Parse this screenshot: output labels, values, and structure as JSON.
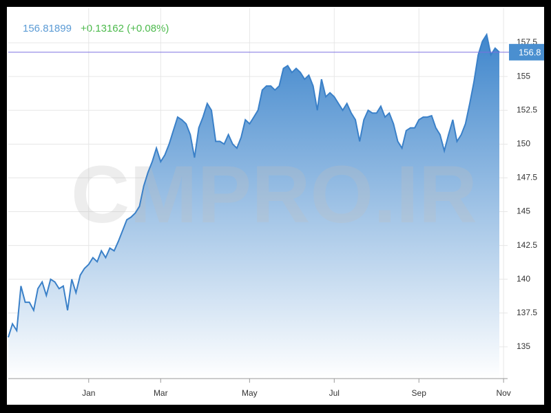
{
  "chart_data": {
    "type": "area",
    "last_value": "156.81899",
    "change": "+0.13162 (+0.08%)",
    "watermark": "CMPRO.IR",
    "price_line": 156.8,
    "color": "#3a80c8",
    "categories": [
      null,
      null,
      null,
      null,
      null,
      null,
      null,
      null,
      null,
      null,
      null,
      null,
      null,
      null,
      null,
      null,
      null,
      null,
      null,
      "Jan",
      null,
      null,
      null,
      null,
      null,
      null,
      null,
      null,
      null,
      null,
      null,
      null,
      null,
      null,
      null,
      null,
      "Mar",
      null,
      null,
      null,
      null,
      null,
      null,
      null,
      null,
      null,
      null,
      null,
      null,
      null,
      null,
      null,
      null,
      null,
      null,
      null,
      null,
      "May",
      null,
      null,
      null,
      null,
      null,
      null,
      null,
      null,
      null,
      null,
      null,
      null,
      null,
      null,
      null,
      null,
      null,
      null,
      null,
      "Jul",
      null,
      null,
      null,
      null,
      null,
      null,
      null,
      null,
      null,
      null,
      null,
      null,
      null,
      null,
      null,
      null,
      null,
      null,
      null,
      "Sep",
      null,
      null,
      null,
      null,
      null,
      null,
      null,
      null,
      null,
      null,
      null,
      null,
      null,
      null,
      null,
      null,
      null,
      null,
      null,
      "Nov"
    ],
    "values": [
      135.7,
      136.7,
      136.2,
      139.5,
      138.3,
      138.3,
      137.7,
      139.3,
      139.8,
      138.8,
      140.0,
      139.8,
      139.3,
      139.5,
      137.7,
      140.0,
      139.0,
      140.3,
      140.8,
      141.1,
      141.6,
      141.3,
      142.1,
      141.6,
      142.3,
      142.1,
      142.8,
      143.6,
      144.4,
      144.6,
      144.9,
      145.4,
      146.9,
      147.9,
      148.7,
      149.7,
      148.7,
      149.2,
      150.0,
      151.0,
      152.0,
      151.8,
      151.5,
      150.7,
      149.0,
      151.2,
      152.0,
      153.0,
      152.5,
      150.2,
      150.2,
      150.0,
      150.7,
      150.0,
      149.7,
      150.5,
      151.8,
      151.5,
      152.0,
      152.5,
      154.0,
      154.3,
      154.3,
      154.0,
      154.3,
      155.6,
      155.8,
      155.3,
      155.6,
      155.3,
      154.8,
      155.1,
      154.3,
      152.5,
      154.8,
      153.5,
      153.8,
      153.5,
      153.0,
      152.5,
      153.0,
      152.3,
      151.8,
      150.2,
      151.8,
      152.5,
      152.3,
      152.3,
      152.8,
      152.0,
      152.3,
      151.5,
      150.2,
      149.7,
      151.0,
      151.2,
      151.2,
      151.8,
      152.0,
      152.0,
      152.1,
      151.2,
      150.7,
      149.5,
      150.7,
      151.8,
      150.2,
      150.7,
      151.5,
      153.0,
      154.6,
      156.6,
      157.6,
      158.1,
      156.6,
      157.1,
      156.8,
      null
    ],
    "ylim": [
      132.65,
      160.05
    ],
    "yticks": [
      135,
      137.5,
      140,
      142.5,
      145,
      147.5,
      150,
      152.5,
      155,
      157.5
    ],
    "grid": true
  }
}
